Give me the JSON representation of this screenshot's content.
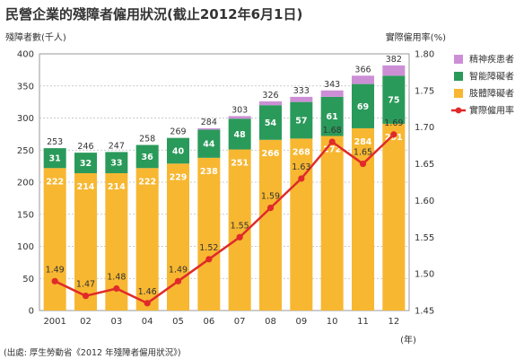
{
  "chart_data": {
    "type": "bar",
    "title": "民營企業的殘障者僱用狀況(截止2012年6月1日)",
    "ylabel_left": "殘障者數(千人)",
    "ylabel_right": "實際僱用率(%)",
    "xlabel_unit": "(年)",
    "source": "(出處: 厚生勞動省《2012 年殘障者僱用狀況》)",
    "categories": [
      "2001",
      "02",
      "03",
      "04",
      "05",
      "06",
      "07",
      "08",
      "09",
      "10",
      "11",
      "12"
    ],
    "ylim_left": [
      0,
      400
    ],
    "yticks_left": [
      "0",
      "50",
      "100",
      "150",
      "200",
      "250",
      "300",
      "350",
      "400"
    ],
    "ylim_right": [
      1.45,
      1.8
    ],
    "yticks_right": [
      "1.45",
      "1.50",
      "1.55",
      "1.60",
      "1.65",
      "1.70",
      "1.75",
      "1.80"
    ],
    "grid": true,
    "legend_position": "right",
    "series": [
      {
        "name": "肢體障礙者",
        "color": "#f7b731",
        "values": [
          222,
          214,
          214,
          222,
          229,
          238,
          251,
          266,
          268,
          272,
          284,
          291
        ]
      },
      {
        "name": "智能障礙者",
        "color": "#2a9a5a",
        "values": [
          31,
          32,
          33,
          36,
          40,
          44,
          48,
          54,
          57,
          61,
          69,
          75
        ]
      },
      {
        "name": "精神疾患者",
        "color": "#cc8fd6",
        "values": [
          0,
          0,
          0,
          0,
          0,
          2,
          4,
          6,
          8,
          10,
          13,
          16
        ]
      }
    ],
    "totals": [
      "253",
      "246",
      "247",
      "258",
      "269",
      "284",
      "303",
      "326",
      "333",
      "343",
      "366",
      "382"
    ],
    "rate": {
      "name": "實際僱用率",
      "color": "#e02a2a",
      "values": [
        1.49,
        1.47,
        1.48,
        1.46,
        1.49,
        1.52,
        1.55,
        1.59,
        1.63,
        1.68,
        1.65,
        1.69
      ]
    },
    "legend": [
      "精神疾患者",
      "智能障礙者",
      "肢體障礙者",
      "實際僱用率"
    ]
  }
}
